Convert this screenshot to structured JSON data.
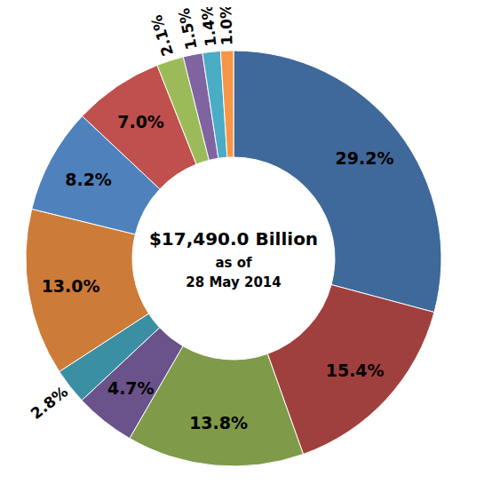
{
  "chart_data": {
    "type": "pie",
    "center_text": [
      "$17,490.0 Billion",
      "as of",
      "28 May 2014"
    ],
    "values": [
      29.2,
      15.4,
      13.8,
      4.7,
      2.8,
      13.0,
      8.2,
      7.0,
      2.1,
      1.5,
      1.4,
      1.0
    ],
    "value_labels": [
      "29.2%",
      "15.4%",
      "13.8%",
      "4.7%",
      "2.8%",
      "13.0%",
      "8.2%",
      "7.0%",
      "2.1%",
      "1.5%",
      "1.4%",
      "1.0%"
    ],
    "colors": [
      "#3F689B",
      "#A0403E",
      "#7F9A48",
      "#6A528A",
      "#3A8FA3",
      "#CC7B38",
      "#4F81BD",
      "#C0504D",
      "#9BBB59",
      "#8064A2",
      "#4BACC6",
      "#F79646"
    ],
    "data_labels": true
  }
}
